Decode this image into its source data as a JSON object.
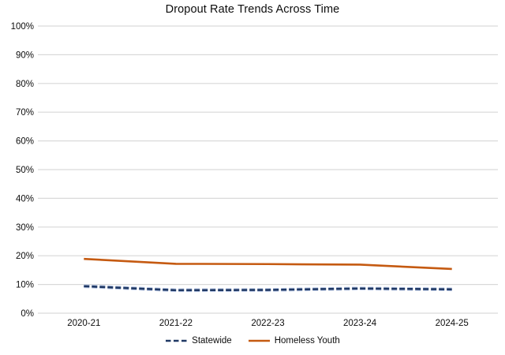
{
  "chart_data": {
    "type": "line",
    "title": "Dropout Rate Trends Across Time",
    "categories": [
      "2020-21",
      "2021-22",
      "2022-23",
      "2023-24",
      "2024-25"
    ],
    "series": [
      {
        "name": "Statewide",
        "values": [
          9.4,
          8.0,
          8.1,
          8.6,
          8.3
        ],
        "color": "#1F3864",
        "halo_color": "#B7C6E4",
        "style": "dashed"
      },
      {
        "name": "Homeless Youth",
        "values": [
          18.9,
          17.2,
          17.1,
          16.9,
          15.4
        ],
        "color": "#C55A11",
        "halo_color": "",
        "style": "solid"
      }
    ],
    "xlabel": "",
    "ylabel": "",
    "ylim": [
      0,
      100
    ],
    "ytick_step": 10,
    "ytick_suffix": "%",
    "grid": "horizontal",
    "gridline_color": "#D9D9D9",
    "tick_text_color": "#0d0d0d",
    "background": "#FFFFFF",
    "legend_position": "bottom"
  }
}
